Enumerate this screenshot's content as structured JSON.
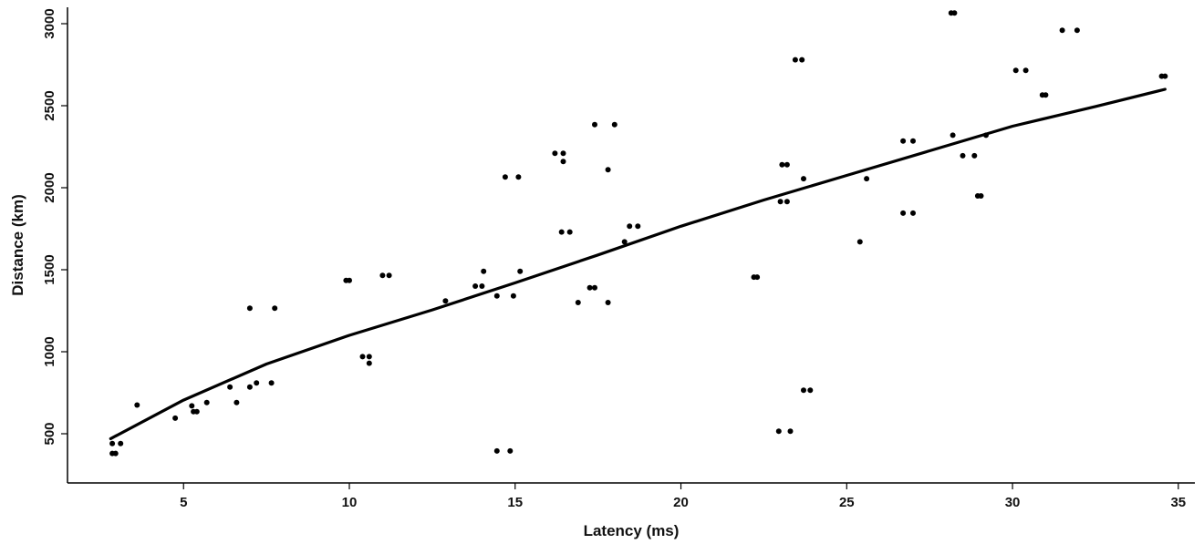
{
  "chart_data": {
    "type": "scatter",
    "title": "",
    "xlabel": "Latency (ms)",
    "ylabel": "Distance (km)",
    "xlim": [
      1.5,
      35.5
    ],
    "ylim": [
      200,
      3100
    ],
    "xticks": [
      5,
      10,
      15,
      20,
      25,
      30,
      35
    ],
    "yticks": [
      500,
      1000,
      1500,
      2000,
      2500,
      3000
    ],
    "grid": false,
    "legend": "none",
    "colors": {
      "points": "#000000",
      "fit": "#000000",
      "axis": "#000000"
    },
    "points": [
      [
        2.85,
        440
      ],
      [
        2.85,
        380
      ],
      [
        2.95,
        380
      ],
      [
        3.1,
        440
      ],
      [
        3.6,
        675
      ],
      [
        4.75,
        595
      ],
      [
        5.25,
        670
      ],
      [
        5.3,
        635
      ],
      [
        5.4,
        635
      ],
      [
        5.7,
        690
      ],
      [
        6.4,
        785
      ],
      [
        6.6,
        690
      ],
      [
        7.0,
        1265
      ],
      [
        7.0,
        785
      ],
      [
        7.2,
        810
      ],
      [
        7.65,
        810
      ],
      [
        7.75,
        1265
      ],
      [
        9.9,
        1435
      ],
      [
        10.0,
        1435
      ],
      [
        10.4,
        970
      ],
      [
        10.6,
        930
      ],
      [
        10.6,
        970
      ],
      [
        11.0,
        1465
      ],
      [
        11.2,
        1465
      ],
      [
        12.9,
        1310
      ],
      [
        13.8,
        1400
      ],
      [
        14.0,
        1400
      ],
      [
        14.05,
        1490
      ],
      [
        14.45,
        1340
      ],
      [
        14.45,
        395
      ],
      [
        14.7,
        2065
      ],
      [
        14.85,
        395
      ],
      [
        14.95,
        1340
      ],
      [
        15.1,
        2065
      ],
      [
        15.15,
        1490
      ],
      [
        16.2,
        2210
      ],
      [
        16.4,
        1730
      ],
      [
        16.45,
        2210
      ],
      [
        16.45,
        2160
      ],
      [
        16.65,
        1730
      ],
      [
        16.9,
        1300
      ],
      [
        17.25,
        1390
      ],
      [
        17.4,
        1390
      ],
      [
        17.4,
        2385
      ],
      [
        17.8,
        2110
      ],
      [
        17.8,
        1300
      ],
      [
        18.0,
        2385
      ],
      [
        18.3,
        1670
      ],
      [
        18.45,
        1765
      ],
      [
        18.7,
        1765
      ],
      [
        22.2,
        1455
      ],
      [
        22.3,
        1455
      ],
      [
        22.95,
        515
      ],
      [
        23.0,
        1915
      ],
      [
        23.05,
        2140
      ],
      [
        23.2,
        2140
      ],
      [
        23.2,
        1915
      ],
      [
        23.3,
        515
      ],
      [
        23.45,
        2780
      ],
      [
        23.65,
        2780
      ],
      [
        23.7,
        765
      ],
      [
        23.7,
        2055
      ],
      [
        23.9,
        765
      ],
      [
        25.4,
        1670
      ],
      [
        25.6,
        2055
      ],
      [
        26.7,
        2285
      ],
      [
        26.7,
        1845
      ],
      [
        27.0,
        2285
      ],
      [
        27.0,
        1845
      ],
      [
        28.15,
        3065
      ],
      [
        28.25,
        3065
      ],
      [
        28.2,
        2320
      ],
      [
        28.5,
        2195
      ],
      [
        28.85,
        2195
      ],
      [
        28.95,
        1950
      ],
      [
        29.05,
        1950
      ],
      [
        29.2,
        2320
      ],
      [
        30.1,
        2715
      ],
      [
        30.4,
        2715
      ],
      [
        30.9,
        2565
      ],
      [
        31.0,
        2565
      ],
      [
        31.5,
        2960
      ],
      [
        31.95,
        2960
      ],
      [
        34.5,
        2680
      ],
      [
        34.6,
        2680
      ]
    ],
    "fit": {
      "label": "",
      "x": [
        2.8,
        5,
        7.5,
        10,
        12.5,
        15,
        17.5,
        20,
        22.5,
        25,
        27.5,
        30,
        32.5,
        34.6
      ],
      "y": [
        470,
        705,
        925,
        1100,
        1255,
        1420,
        1590,
        1765,
        1925,
        2075,
        2225,
        2375,
        2495,
        2600
      ]
    }
  }
}
